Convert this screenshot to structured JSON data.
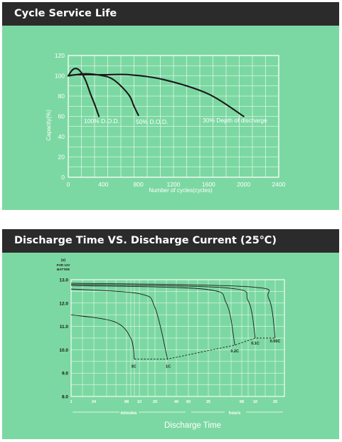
{
  "colors": {
    "panel_bg": "#7cd8a2",
    "header_bg": "#2b2b2b",
    "grid": "#ffffff",
    "curve": "#1a1a1a"
  },
  "chart_data": [
    {
      "type": "line",
      "title": "Cycle Service Life",
      "xlabel": "Number of cycles(cycles)",
      "ylabel": "Capacity(%)",
      "xlim": [
        0,
        2400
      ],
      "ylim": [
        0,
        120
      ],
      "x_ticks": [
        "0",
        "400",
        "800",
        "1200",
        "1600",
        "2000",
        "2400"
      ],
      "y_ticks": [
        "0",
        "20",
        "40",
        "60",
        "80",
        "100",
        "120"
      ],
      "grid": true,
      "series": [
        {
          "name": "100% D.O.D.",
          "x": [
            0,
            50,
            100,
            150,
            200,
            250,
            300,
            350
          ],
          "y": [
            100,
            106,
            107,
            103,
            95,
            83,
            72,
            60
          ]
        },
        {
          "name": "50% D.O.D.",
          "x": [
            0,
            200,
            400,
            500,
            600,
            700,
            750,
            800
          ],
          "y": [
            100,
            102,
            100,
            97,
            90,
            80,
            70,
            61
          ]
        },
        {
          "name": "30% Depth of discharge",
          "x": [
            0,
            100,
            400,
            700,
            1100,
            1600,
            2000
          ],
          "y": [
            100,
            101,
            101,
            101,
            96,
            82,
            60
          ]
        }
      ]
    },
    {
      "type": "line",
      "title": "Discharge Time VS. Discharge Current (25℃)",
      "xlabel": "Discharge Time",
      "ylabel": "(v)",
      "ylabel_note": [
        "FOR 12V",
        "BATTER"
      ],
      "ylim": [
        8.0,
        13.0
      ],
      "y_ticks": [
        "8.0",
        "9.0",
        "10.0",
        "11.0",
        "12.0",
        "13.0"
      ],
      "x_ticks": [
        "1",
        "24",
        "68",
        "10",
        "20",
        "40",
        "60",
        "25",
        "68",
        "10",
        "20"
      ],
      "x_units": [
        "minutes",
        "hours"
      ],
      "grid": true,
      "series": [
        {
          "name": "3C",
          "x_min": [
            1,
            4,
            7,
            8
          ],
          "y": [
            11.5,
            11.2,
            10.5,
            9.6
          ]
        },
        {
          "name": "1C",
          "x_min": [
            1,
            10,
            20,
            30
          ],
          "y": [
            12.6,
            12.4,
            11.8,
            9.6
          ]
        },
        {
          "name": "0.2C",
          "x_min": [
            1,
            120,
            240,
            300
          ],
          "y": [
            12.75,
            12.6,
            12.0,
            10.2
          ]
        },
        {
          "name": "0.1C",
          "x_min": [
            1,
            240,
            480,
            600
          ],
          "y": [
            12.8,
            12.65,
            12.1,
            10.5
          ]
        },
        {
          "name": "0.05C",
          "x_min": [
            1,
            480,
            960,
            1200
          ],
          "y": [
            12.85,
            12.7,
            12.2,
            10.5
          ]
        }
      ],
      "end_voltage_line": {
        "label": "dashed end-voltage",
        "y": [
          9.6,
          9.6,
          10.2,
          10.5,
          10.5
        ]
      }
    }
  ]
}
